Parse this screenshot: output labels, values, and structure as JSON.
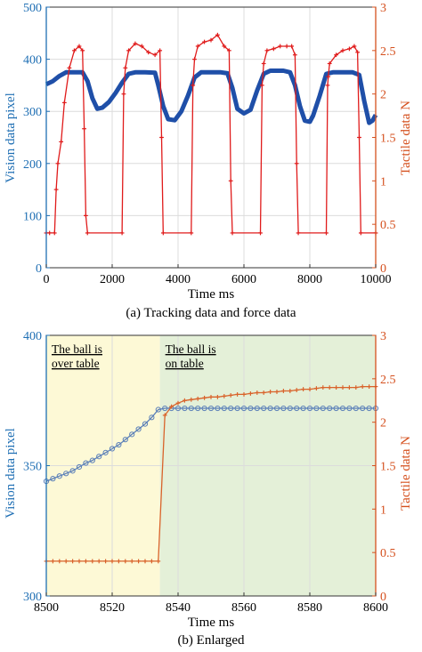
{
  "chart_data": [
    {
      "type": "line",
      "caption": "(a) Tracking data and force data",
      "xlabel": "Time  ms",
      "ylabel_left": "Vision data  pixel",
      "ylabel_right": "Tactile data  N",
      "xlim": [
        0,
        10000
      ],
      "ylim_left": [
        0,
        500
      ],
      "ylim_right": [
        0,
        3
      ],
      "xticks": [
        "0",
        "2000",
        "4000",
        "6000",
        "8000",
        "10000"
      ],
      "yticks_left": [
        "0",
        "100",
        "200",
        "300",
        "400",
        "500"
      ],
      "yticks_right": [
        "0",
        "0.5",
        "1",
        "1.5",
        "2",
        "2.5",
        "3"
      ],
      "grid": true,
      "colors": {
        "vision": "#1f4fa8",
        "tactile": "#e01b1b",
        "left_axis": "#1f6fb4",
        "right_axis": "#d5501e"
      },
      "series": [
        {
          "axis": "left",
          "x": [
            0,
            200,
            400,
            600,
            900,
            1100,
            1250,
            1400,
            1550,
            1700,
            1900,
            2100,
            2300,
            2500,
            2700,
            3000,
            3300,
            3400,
            3550,
            3700,
            3900,
            4100,
            4300,
            4500,
            4700,
            5000,
            5300,
            5500,
            5650,
            5800,
            6000,
            6200,
            6400,
            6600,
            6800,
            7200,
            7400,
            7550,
            7700,
            7850,
            8000,
            8100,
            8300,
            8500,
            8700,
            9000,
            9300,
            9500,
            9650,
            9800,
            9900,
            10000
          ],
          "values": [
            352,
            358,
            368,
            375,
            375,
            375,
            358,
            325,
            305,
            307,
            318,
            335,
            355,
            372,
            375,
            375,
            374,
            350,
            310,
            285,
            283,
            300,
            330,
            365,
            375,
            375,
            375,
            373,
            345,
            305,
            296,
            303,
            340,
            372,
            378,
            378,
            375,
            350,
            310,
            282,
            280,
            292,
            330,
            372,
            375,
            375,
            375,
            370,
            320,
            278,
            282,
            293
          ]
        },
        {
          "axis": "right",
          "x": [
            0,
            100,
            250,
            300,
            350,
            450,
            550,
            700,
            850,
            1000,
            1100,
            1150,
            1200,
            1250,
            2300,
            2350,
            2400,
            2500,
            2700,
            2900,
            3100,
            3300,
            3450,
            3500,
            3550,
            4400,
            4450,
            4500,
            4600,
            4800,
            5000,
            5200,
            5400,
            5550,
            5600,
            5650,
            6500,
            6550,
            6600,
            6700,
            6900,
            7100,
            7300,
            7450,
            7550,
            7600,
            7650,
            8500,
            8540,
            8560,
            8600,
            8800,
            9000,
            9200,
            9350,
            9450,
            9500,
            9550,
            10000
          ],
          "values": [
            0.4,
            0.4,
            0.4,
            0.9,
            1.2,
            1.45,
            1.9,
            2.3,
            2.5,
            2.55,
            2.5,
            1.6,
            0.6,
            0.4,
            0.4,
            2.0,
            2.3,
            2.5,
            2.58,
            2.55,
            2.48,
            2.45,
            2.5,
            1.5,
            0.4,
            0.4,
            2.1,
            2.4,
            2.55,
            2.6,
            2.62,
            2.68,
            2.55,
            2.5,
            1.0,
            0.4,
            0.4,
            2.1,
            2.35,
            2.5,
            2.52,
            2.55,
            2.55,
            2.55,
            2.45,
            1.2,
            0.4,
            0.4,
            2.1,
            2.2,
            2.35,
            2.45,
            2.5,
            2.52,
            2.55,
            2.48,
            1.5,
            0.4,
            0.4
          ]
        }
      ]
    },
    {
      "type": "line",
      "caption": "(b) Enlarged",
      "xlabel": "Time  ms",
      "ylabel_left": "Vision data  pixel",
      "ylabel_right": "Tactile data  N",
      "xlim": [
        8500,
        8600
      ],
      "ylim_left": [
        300,
        400
      ],
      "ylim_right": [
        0,
        3
      ],
      "xticks": [
        "8500",
        "8520",
        "8540",
        "8560",
        "8580",
        "8600"
      ],
      "yticks_left": [
        "300",
        "350",
        "400"
      ],
      "yticks_right": [
        "0",
        "0.5",
        "1",
        "1.5",
        "2",
        "2.5",
        "3"
      ],
      "grid": true,
      "regions": [
        {
          "label_line1": "The ball is",
          "label_line2": "over table",
          "x_from": 8500,
          "x_to": 8534.5,
          "color": "#fdf9d6"
        },
        {
          "label_line1": "The ball is",
          "label_line2": "on table",
          "x_from": 8534.5,
          "x_to": 8600,
          "color": "#e4f0d8"
        }
      ],
      "colors": {
        "vision": "#5a7fb8",
        "tactile": "#d9632b",
        "left_axis": "#1f6fb4",
        "right_axis": "#d5501e"
      },
      "series": [
        {
          "axis": "left",
          "x": [
            8500,
            8502,
            8504,
            8506,
            8508,
            8510,
            8512,
            8514,
            8516,
            8518,
            8520,
            8522,
            8524,
            8526,
            8528,
            8530,
            8532,
            8534,
            8536,
            8538,
            8540,
            8542,
            8544,
            8546,
            8548,
            8550,
            8552,
            8554,
            8556,
            8558,
            8560,
            8562,
            8564,
            8566,
            8568,
            8570,
            8572,
            8574,
            8576,
            8578,
            8580,
            8582,
            8584,
            8586,
            8588,
            8590,
            8592,
            8594,
            8596,
            8598,
            8600
          ],
          "values": [
            344,
            345,
            346,
            347,
            348,
            349.5,
            351,
            352,
            353.5,
            355,
            356.5,
            358,
            360,
            362,
            364,
            366,
            368.5,
            371.5,
            372,
            372,
            372,
            372,
            372,
            372,
            372,
            372,
            372,
            372,
            372,
            372,
            372,
            372,
            372,
            372,
            372,
            372,
            372,
            372,
            372,
            372,
            372,
            372,
            372,
            372,
            372,
            372,
            372,
            372,
            372,
            372,
            372
          ]
        },
        {
          "axis": "right",
          "x": [
            8500,
            8502,
            8504,
            8506,
            8508,
            8510,
            8512,
            8514,
            8516,
            8518,
            8520,
            8522,
            8524,
            8526,
            8528,
            8530,
            8532,
            8534,
            8536,
            8538,
            8540,
            8542,
            8544,
            8546,
            8548,
            8550,
            8552,
            8554,
            8556,
            8558,
            8560,
            8562,
            8564,
            8566,
            8568,
            8570,
            8572,
            8574,
            8576,
            8578,
            8580,
            8582,
            8584,
            8586,
            8588,
            8590,
            8592,
            8594,
            8596,
            8598,
            8600
          ],
          "values": [
            0.4,
            0.4,
            0.4,
            0.4,
            0.4,
            0.4,
            0.4,
            0.4,
            0.4,
            0.4,
            0.4,
            0.4,
            0.4,
            0.4,
            0.4,
            0.4,
            0.4,
            0.4,
            2.08,
            2.18,
            2.22,
            2.25,
            2.26,
            2.27,
            2.28,
            2.29,
            2.29,
            2.3,
            2.31,
            2.32,
            2.32,
            2.33,
            2.34,
            2.34,
            2.35,
            2.35,
            2.36,
            2.36,
            2.37,
            2.38,
            2.38,
            2.39,
            2.4,
            2.4,
            2.4,
            2.4,
            2.4,
            2.4,
            2.41,
            2.41,
            2.41
          ]
        }
      ]
    }
  ]
}
